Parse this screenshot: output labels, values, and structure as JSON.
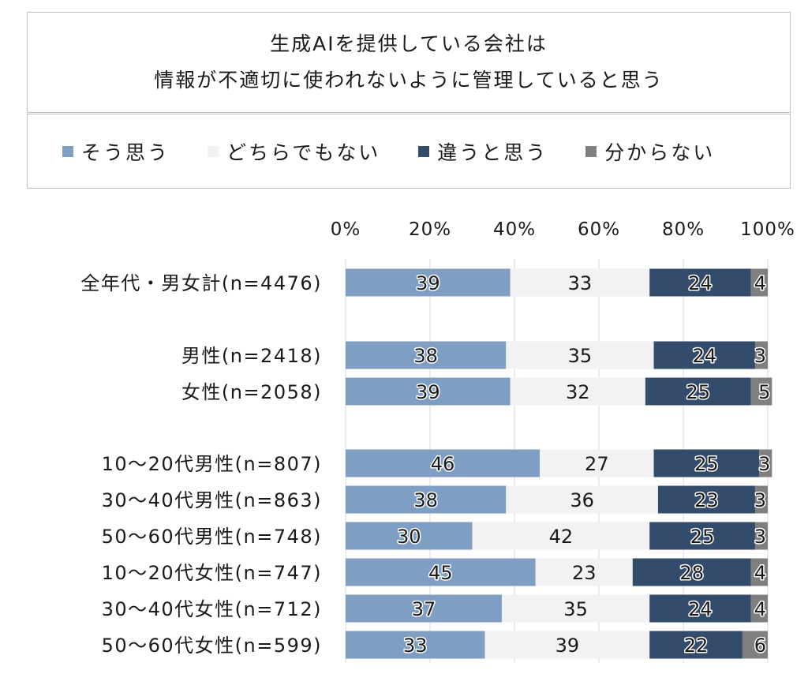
{
  "title_lines": [
    "生成AIを提供している会社は",
    "情報が不適切に使われないように管理していると思う"
  ],
  "legend": [
    {
      "label": "そう思う",
      "color": "#7f9ec3"
    },
    {
      "label": "どちらでもない",
      "color": "#f2f2f2"
    },
    {
      "label": "違うと思う",
      "color": "#344c6c"
    },
    {
      "label": "分からない",
      "color": "#7f7f7f"
    }
  ],
  "chart_data": {
    "type": "bar",
    "orientation": "horizontal",
    "stacked": true,
    "percent_scale": true,
    "xlim": [
      0,
      100
    ],
    "x_ticks": [
      "0%",
      "20%",
      "40%",
      "60%",
      "80%",
      "100%"
    ],
    "categories": [
      "全年代・男女計(n=4476)",
      "男性(n=2418)",
      "女性(n=2058)",
      "10～20代男性(n=807)",
      "30～40代男性(n=863)",
      "50～60代男性(n=748)",
      "10～20代女性(n=747)",
      "30～40代女性(n=712)",
      "50～60代女性(n=599)"
    ],
    "series": [
      {
        "name": "そう思う",
        "color": "#7f9ec3",
        "values": [
          39,
          38,
          39,
          46,
          38,
          30,
          45,
          37,
          33
        ]
      },
      {
        "name": "どちらでもない",
        "color": "#f2f2f2",
        "values": [
          33,
          35,
          32,
          27,
          36,
          42,
          23,
          35,
          39
        ]
      },
      {
        "name": "違うと思う",
        "color": "#344c6c",
        "values": [
          24,
          24,
          25,
          25,
          23,
          25,
          28,
          24,
          22
        ]
      },
      {
        "name": "分からない",
        "color": "#7f7f7f",
        "values": [
          4,
          3,
          5,
          3,
          3,
          3,
          4,
          4,
          6
        ]
      }
    ],
    "grid": true,
    "legend_position": "top"
  }
}
